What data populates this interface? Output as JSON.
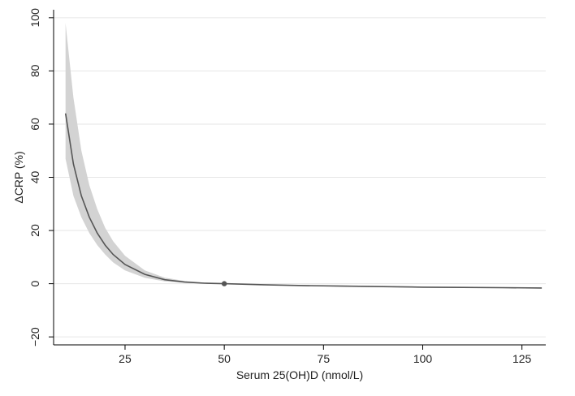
{
  "chart_data": {
    "type": "line",
    "title": "",
    "xlabel": "Serum 25(OH)D (nmol/L)",
    "ylabel": "ΔCRP (%)",
    "xlim": [
      7,
      131
    ],
    "ylim": [
      -23,
      103
    ],
    "xticks": [
      25,
      50,
      75,
      100,
      125
    ],
    "yticks": [
      -20,
      0,
      20,
      40,
      60,
      80,
      100
    ],
    "grid": "horizontal",
    "colors": {
      "curve": "#555555",
      "band": "#d3d3d3",
      "grid": "#e6e6e6"
    },
    "series": [
      {
        "x": [
          10,
          12,
          14,
          16,
          18,
          20,
          22,
          25,
          30,
          35,
          40,
          45,
          50,
          60,
          70,
          80,
          90,
          100,
          110,
          120,
          130
        ],
        "y": [
          64,
          45,
          33,
          25,
          19,
          14.5,
          11,
          7.2,
          3.5,
          1.5,
          0.6,
          0.2,
          0,
          -0.4,
          -0.7,
          -0.9,
          -1.1,
          -1.3,
          -1.4,
          -1.5,
          -1.6
        ],
        "lower": [
          47,
          33,
          25,
          19,
          14.5,
          11,
          8,
          5,
          2.2,
          0.9,
          0.3,
          0.1,
          0,
          -0.5,
          -0.9,
          -1.1,
          -1.3,
          -1.5,
          -1.6,
          -1.7,
          -1.8
        ],
        "upper": [
          98,
          70,
          50,
          37,
          28,
          21,
          16,
          10.5,
          5,
          2.3,
          1.0,
          0.4,
          0,
          -0.3,
          -0.5,
          -0.7,
          -0.9,
          -1.1,
          -1.2,
          -1.3,
          -1.4
        ]
      }
    ],
    "reference_point": {
      "x": 50,
      "y": 0
    }
  }
}
